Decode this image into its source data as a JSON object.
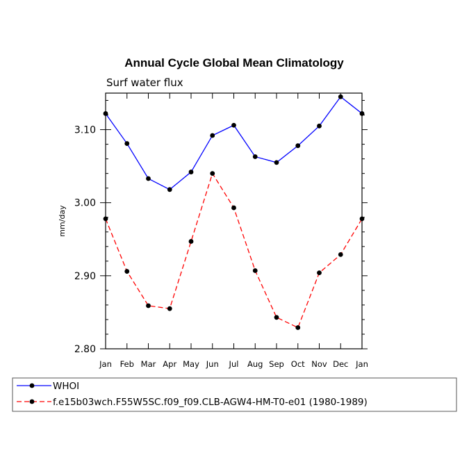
{
  "chart_data": {
    "type": "line",
    "title": "Annual Cycle Global Mean Climatology",
    "subtitle": "Surf water flux",
    "xlabel": "",
    "ylabel": "mm/day",
    "categories": [
      "Jan",
      "Feb",
      "Mar",
      "Apr",
      "May",
      "Jun",
      "Jul",
      "Aug",
      "Sep",
      "Oct",
      "Nov",
      "Dec",
      "Jan"
    ],
    "ylim": [
      2.8,
      3.15
    ],
    "yticks": [
      2.8,
      2.9,
      3.0,
      3.1
    ],
    "ytick_labels": [
      "2.80",
      "2.90",
      "3.00",
      "3.10"
    ],
    "series": [
      {
        "name": "WHOI",
        "color": "#0000ff",
        "dash": "solid",
        "values": [
          3.122,
          3.081,
          3.033,
          3.018,
          3.042,
          3.092,
          3.106,
          3.063,
          3.055,
          3.078,
          3.105,
          3.145,
          3.122
        ]
      },
      {
        "name": "f.e15b03wch.F55W5SC.f09_f09.CLB-AGW4-HM-T0-e01 (1980-1989)",
        "color": "#ff0000",
        "dash": "dashed",
        "values": [
          2.978,
          2.906,
          2.859,
          2.855,
          2.947,
          3.04,
          2.993,
          2.907,
          2.843,
          2.829,
          2.904,
          2.929,
          2.978
        ]
      }
    ],
    "legend_position": "bottom"
  }
}
